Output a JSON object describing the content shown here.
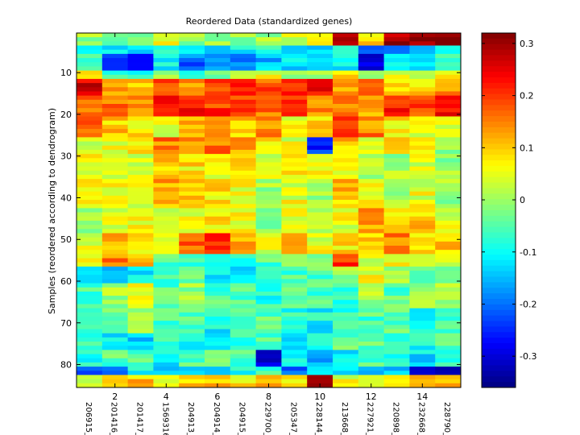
{
  "chart_data": {
    "type": "heatmap",
    "title": "Reordered Data (standardized genes)",
    "xlabel": "",
    "ylabel": "Samples (reordered according to dendrogram)",
    "n_rows": 85,
    "n_cols": 15,
    "x_ticks": [
      2,
      4,
      6,
      8,
      10,
      12,
      14
    ],
    "x_tick_labels": [
      "206915_",
      "201416_",
      "201417_",
      "1569316",
      "204913_",
      "204914_",
      "204915_",
      "229700_",
      "205347_",
      "228144_",
      "213668_",
      "227921_",
      "220898_",
      "232668_",
      "228790_"
    ],
    "y_ticks": [
      10,
      20,
      30,
      40,
      50,
      60,
      70,
      80
    ],
    "colorbar": {
      "min": -0.36,
      "max": 0.32,
      "ticks": [
        -0.3,
        -0.2,
        -0.1,
        0,
        0.1,
        0.2,
        0.3
      ],
      "colormap": "jet"
    },
    "bands": [
      {
        "rows": [
          1,
          3
        ],
        "values": [
          0.0,
          -0.05,
          0.0,
          0.05,
          0.0,
          0.0,
          0.0,
          0.0,
          0.03,
          0.08,
          0.25,
          0.1,
          0.28,
          0.28,
          0.3
        ]
      },
      {
        "rows": [
          4,
          5
        ],
        "values": [
          -0.1,
          -0.12,
          -0.15,
          -0.1,
          -0.08,
          -0.12,
          -0.1,
          -0.08,
          -0.1,
          -0.12,
          -0.05,
          -0.25,
          -0.18,
          -0.15,
          -0.1
        ]
      },
      {
        "rows": [
          6,
          9
        ],
        "values": [
          -0.05,
          -0.25,
          -0.28,
          -0.1,
          -0.2,
          -0.2,
          -0.18,
          -0.15,
          -0.12,
          -0.12,
          -0.1,
          -0.32,
          -0.08,
          -0.1,
          -0.05
        ]
      },
      {
        "rows": [
          10,
          11
        ],
        "values": [
          0.05,
          -0.05,
          -0.1,
          0.0,
          -0.1,
          -0.05,
          0.0,
          0.05,
          0.0,
          0.0,
          0.08,
          0.0,
          0.05,
          0.05,
          0.05
        ]
      },
      {
        "rows": [
          12,
          15
        ],
        "values": [
          0.25,
          0.12,
          0.1,
          0.2,
          0.15,
          0.18,
          0.2,
          0.18,
          0.22,
          0.22,
          0.12,
          0.15,
          0.1,
          0.08,
          0.15
        ]
      },
      {
        "rows": [
          16,
          20
        ],
        "values": [
          0.15,
          0.15,
          0.12,
          0.25,
          0.22,
          0.2,
          0.18,
          0.15,
          0.18,
          0.15,
          0.15,
          0.12,
          0.22,
          0.2,
          0.25
        ]
      },
      {
        "rows": [
          21,
          25
        ],
        "values": [
          0.18,
          0.1,
          0.08,
          0.05,
          0.1,
          0.12,
          0.1,
          0.15,
          0.05,
          0.1,
          0.2,
          0.15,
          0.08,
          0.05,
          0.05
        ]
      },
      {
        "rows": [
          26,
          29
        ],
        "values": [
          0.05,
          0.05,
          0.08,
          0.15,
          0.12,
          0.15,
          0.12,
          0.08,
          0.05,
          -0.25,
          0.1,
          0.05,
          0.08,
          0.1,
          0.0
        ]
      },
      {
        "rows": [
          30,
          35
        ],
        "values": [
          0.05,
          0.05,
          0.05,
          0.1,
          0.08,
          0.05,
          0.1,
          0.05,
          0.08,
          0.05,
          0.05,
          0.0,
          0.0,
          0.05,
          0.0
        ]
      },
      {
        "rows": [
          36,
          42
        ],
        "values": [
          0.05,
          0.05,
          0.05,
          0.12,
          0.1,
          0.08,
          0.05,
          0.0,
          0.05,
          0.0,
          0.1,
          0.05,
          0.0,
          0.05,
          0.0
        ]
      },
      {
        "rows": [
          43,
          48
        ],
        "values": [
          0.0,
          0.05,
          0.05,
          0.05,
          0.05,
          0.08,
          0.05,
          0.0,
          0.05,
          0.0,
          0.05,
          0.12,
          0.08,
          0.1,
          0.05
        ]
      },
      {
        "rows": [
          49,
          53
        ],
        "values": [
          0.05,
          0.1,
          0.08,
          0.05,
          0.18,
          0.2,
          0.12,
          0.05,
          0.1,
          0.05,
          0.08,
          0.1,
          0.15,
          0.1,
          0.1
        ]
      },
      {
        "rows": [
          54,
          56
        ],
        "values": [
          0.05,
          0.15,
          0.1,
          -0.05,
          -0.05,
          -0.08,
          -0.1,
          -0.05,
          0.0,
          0.0,
          0.2,
          0.05,
          0.05,
          0.0,
          0.05
        ]
      },
      {
        "rows": [
          57,
          60
        ],
        "values": [
          -0.1,
          -0.15,
          -0.12,
          -0.08,
          -0.05,
          -0.1,
          -0.12,
          -0.08,
          -0.05,
          -0.05,
          0.0,
          0.05,
          0.0,
          -0.05,
          0.0
        ]
      },
      {
        "rows": [
          61,
          66
        ],
        "values": [
          -0.05,
          0.0,
          0.05,
          -0.05,
          0.0,
          -0.05,
          -0.05,
          -0.08,
          -0.05,
          -0.05,
          -0.08,
          0.0,
          -0.05,
          0.0,
          0.0
        ]
      },
      {
        "rows": [
          67,
          72
        ],
        "values": [
          -0.05,
          -0.05,
          0.0,
          -0.05,
          -0.05,
          -0.1,
          -0.05,
          -0.05,
          -0.08,
          -0.1,
          -0.08,
          -0.05,
          -0.05,
          -0.1,
          -0.05
        ]
      },
      {
        "rows": [
          73,
          76
        ],
        "values": [
          -0.05,
          -0.1,
          -0.15,
          -0.08,
          -0.1,
          -0.1,
          -0.08,
          -0.05,
          -0.1,
          -0.1,
          -0.05,
          -0.05,
          -0.05,
          -0.1,
          -0.05
        ]
      },
      {
        "rows": [
          77,
          80
        ],
        "values": [
          -0.08,
          -0.05,
          -0.05,
          -0.1,
          -0.05,
          -0.05,
          -0.05,
          -0.28,
          -0.08,
          -0.15,
          -0.1,
          -0.05,
          -0.1,
          -0.12,
          -0.08
        ]
      },
      {
        "rows": [
          81,
          82
        ],
        "values": [
          -0.2,
          -0.2,
          -0.1,
          -0.15,
          -0.1,
          -0.12,
          -0.08,
          -0.05,
          -0.2,
          -0.12,
          -0.1,
          -0.15,
          -0.15,
          -0.28,
          -0.3
        ]
      },
      {
        "rows": [
          83,
          85
        ],
        "values": [
          0.05,
          0.08,
          0.1,
          0.05,
          0.1,
          0.1,
          0.08,
          0.1,
          0.08,
          0.3,
          0.05,
          0.0,
          0.1,
          0.15,
          0.1
        ]
      }
    ]
  }
}
